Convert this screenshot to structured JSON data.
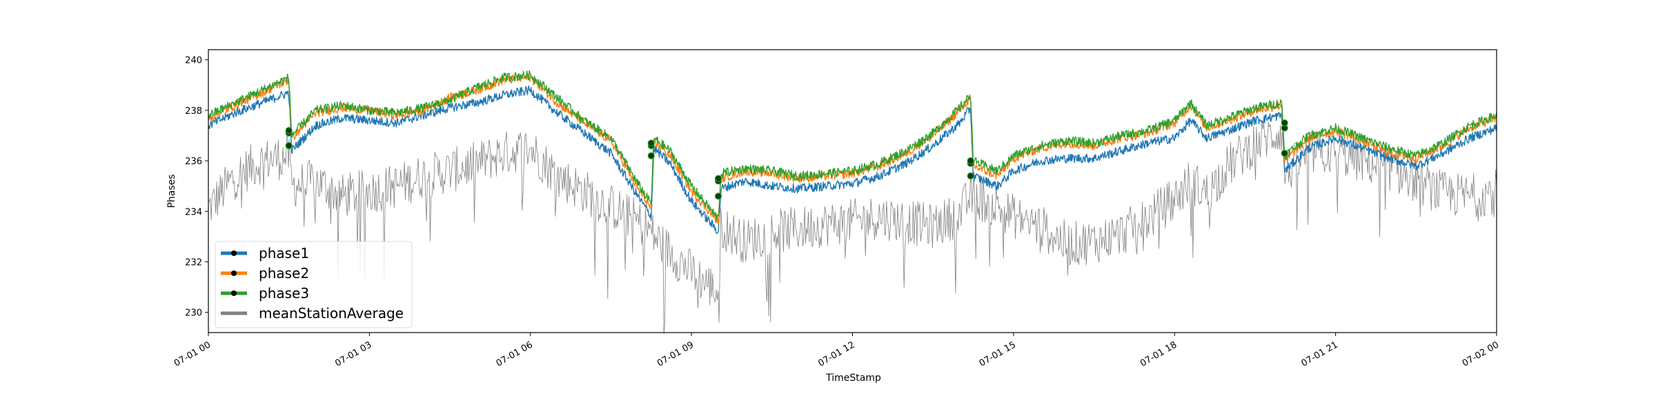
{
  "chart_data": {
    "type": "line",
    "title": "",
    "xlabel": "TimeStamp",
    "ylabel": "Phases",
    "xlim": [
      "07-01 00",
      "07-02 00"
    ],
    "ylim": [
      229.2,
      240.4
    ],
    "x_ticks": [
      "07-01 00",
      "07-01 03",
      "07-01 06",
      "07-01 09",
      "07-01 12",
      "07-01 15",
      "07-01 18",
      "07-01 21",
      "07-02 00"
    ],
    "y_ticks": [
      230,
      232,
      234,
      236,
      238,
      240
    ],
    "grid": false,
    "legend_position": "lower-left",
    "x_hours": [
      0,
      0.5,
      1.0,
      1.5,
      1.55,
      2.0,
      2.5,
      3.0,
      3.5,
      4.0,
      4.5,
      5.0,
      5.5,
      6.0,
      6.5,
      7.0,
      7.5,
      8.0,
      8.25,
      8.3,
      8.6,
      9.0,
      9.5,
      9.55,
      10.0,
      10.5,
      11.0,
      11.5,
      12.0,
      12.5,
      13.0,
      13.5,
      14.0,
      14.2,
      14.25,
      14.7,
      15.0,
      15.5,
      16.0,
      16.5,
      17.0,
      17.5,
      18.0,
      18.3,
      18.6,
      19.0,
      19.5,
      20.0,
      20.05,
      20.5,
      21.0,
      21.5,
      22.0,
      22.5,
      23.0,
      23.5,
      24.0
    ],
    "series": [
      {
        "name": "phase1",
        "color": "#1f77b4",
        "values": [
          237.4,
          237.9,
          238.3,
          238.7,
          236.4,
          237.4,
          237.7,
          237.6,
          237.5,
          237.8,
          238.1,
          238.3,
          238.6,
          238.8,
          237.9,
          237.1,
          236.3,
          234.6,
          233.8,
          236.5,
          235.9,
          234.4,
          233.2,
          234.9,
          235.2,
          235.0,
          234.9,
          235.0,
          235.1,
          235.4,
          235.9,
          236.6,
          237.5,
          238.1,
          235.4,
          235.0,
          235.6,
          236.0,
          236.1,
          236.1,
          236.4,
          236.7,
          236.9,
          237.6,
          236.9,
          237.2,
          237.6,
          237.8,
          235.6,
          236.5,
          236.9,
          236.5,
          236.1,
          235.8,
          236.3,
          236.9,
          237.3
        ]
      },
      {
        "name": "phase2",
        "color": "#ff7f0e",
        "values": [
          237.7,
          238.2,
          238.7,
          239.2,
          236.9,
          237.9,
          238.1,
          238.0,
          237.8,
          238.0,
          238.5,
          238.8,
          239.2,
          239.3,
          238.3,
          237.5,
          236.8,
          234.9,
          234.1,
          236.8,
          236.2,
          234.8,
          233.6,
          235.3,
          235.6,
          235.5,
          235.3,
          235.4,
          235.5,
          235.8,
          236.3,
          237.0,
          238.0,
          238.5,
          235.8,
          235.4,
          236.1,
          236.5,
          236.7,
          236.6,
          236.9,
          237.1,
          237.5,
          238.2,
          237.3,
          237.6,
          238.0,
          238.2,
          236.0,
          236.9,
          237.2,
          236.8,
          236.3,
          236.1,
          236.6,
          237.3,
          237.7
        ]
      },
      {
        "name": "phase3",
        "color": "#2ca02c",
        "values": [
          237.8,
          238.3,
          238.8,
          239.3,
          237.0,
          238.0,
          238.2,
          238.0,
          237.9,
          238.1,
          238.4,
          238.9,
          239.3,
          239.4,
          238.5,
          237.6,
          236.9,
          235.1,
          234.3,
          236.9,
          236.4,
          235.0,
          233.7,
          235.5,
          235.7,
          235.6,
          235.4,
          235.5,
          235.6,
          235.9,
          236.4,
          237.1,
          238.1,
          238.6,
          236.0,
          235.6,
          236.2,
          236.6,
          236.8,
          236.7,
          237.0,
          237.2,
          237.6,
          238.3,
          237.4,
          237.7,
          238.1,
          238.3,
          236.2,
          237.0,
          237.3,
          236.9,
          236.5,
          236.2,
          236.7,
          237.4,
          237.8
        ]
      },
      {
        "name": "meanStationAverage",
        "color": "#808080",
        "values": [
          234.1,
          235.4,
          236.0,
          236.2,
          235.0,
          235.2,
          234.6,
          234.8,
          235.0,
          235.4,
          235.6,
          235.9,
          236.3,
          236.5,
          235.4,
          234.8,
          234.2,
          233.6,
          233.2,
          233.0,
          232.4,
          231.6,
          230.8,
          233.4,
          232.8,
          233.2,
          233.3,
          233.5,
          233.6,
          233.8,
          233.6,
          233.4,
          233.9,
          234.6,
          234.6,
          234.2,
          233.8,
          233.4,
          232.7,
          232.8,
          233.1,
          233.7,
          234.5,
          235.2,
          234.7,
          235.8,
          236.7,
          237.2,
          235.5,
          236.3,
          236.3,
          236.0,
          235.7,
          235.2,
          234.7,
          234.6,
          234.8
        ]
      }
    ],
    "event_markers": {
      "x_hours": [
        1.5,
        8.25,
        9.5,
        14.2,
        20.05
      ],
      "values": [
        [
          236.6,
          236.2,
          234.6,
          235.4,
          236.3
        ],
        [
          237.1,
          236.6,
          235.2,
          235.9,
          237.3
        ],
        [
          237.2,
          236.7,
          235.3,
          236.0,
          237.5
        ]
      ]
    },
    "legend": {
      "entries": [
        "phase1",
        "phase2",
        "phase3",
        "meanStationAverage"
      ]
    }
  }
}
